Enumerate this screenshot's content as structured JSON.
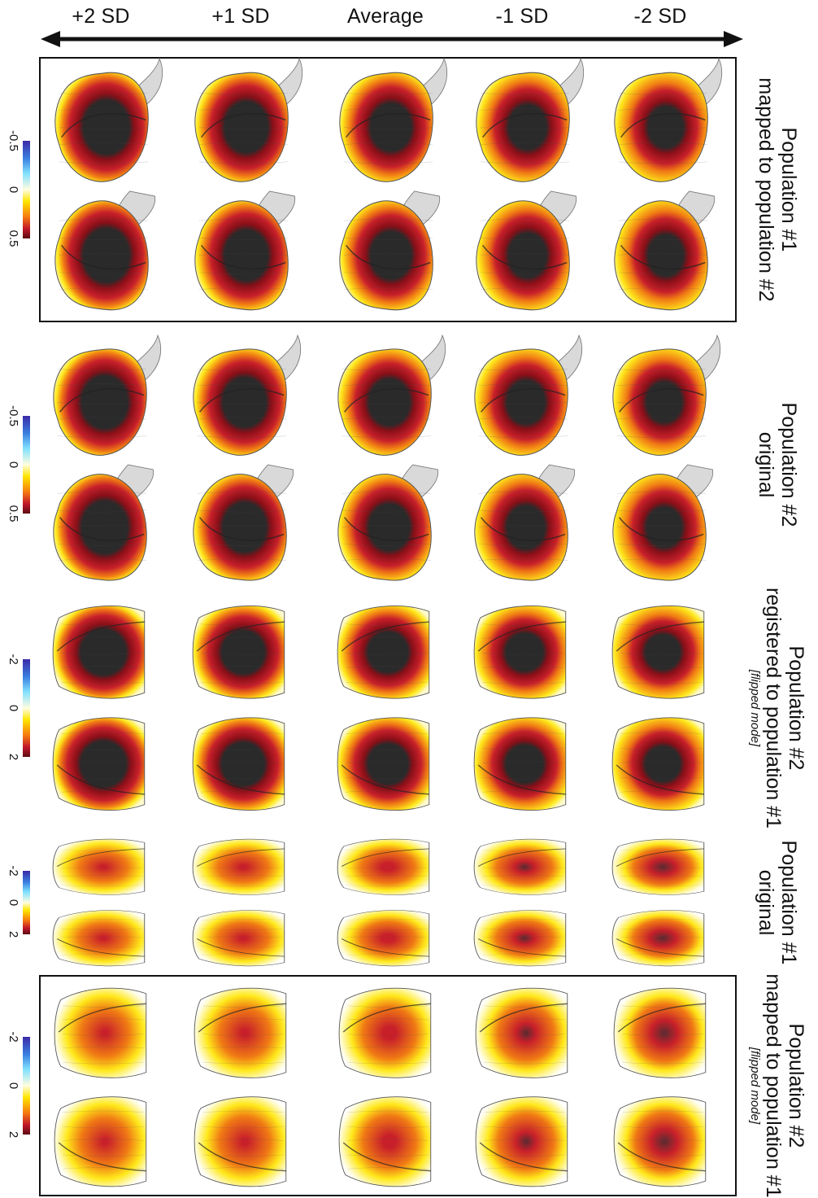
{
  "columns": [
    "+2 SD",
    "+1 SD",
    "Average",
    "-1 SD",
    "-2 SD"
  ],
  "rows": [
    {
      "id": "row1",
      "line1": "Population #1",
      "line2": "mapped to population #2",
      "line3": "",
      "boxed": true,
      "ticks": [
        "-0.5",
        "0",
        "0.5"
      ],
      "shape": "heart",
      "tone": "dark"
    },
    {
      "id": "row2",
      "line1": "Population #2",
      "line2": "original",
      "line3": "",
      "boxed": false,
      "ticks": [
        "-0.5",
        "0",
        "0.5"
      ],
      "shape": "heart",
      "tone": "dark"
    },
    {
      "id": "row3",
      "line1": "Population #2",
      "line2": "registered to population #1",
      "line3": "[flipped mode]",
      "boxed": false,
      "ticks": [
        "-2",
        "0",
        "2"
      ],
      "shape": "cup",
      "tone": "dark"
    },
    {
      "id": "row4",
      "line1": "Population #1",
      "line2": "original",
      "line3": "",
      "boxed": false,
      "ticks": [
        "-2",
        "0",
        "2"
      ],
      "shape": "cup",
      "tone": "light"
    },
    {
      "id": "row5",
      "line1": "Population #2",
      "line2": "mapped to population #1",
      "line3": "[flipped mode]",
      "boxed": true,
      "ticks": [
        "-2",
        "0",
        "2"
      ],
      "shape": "cup",
      "tone": "light"
    }
  ],
  "colors": {
    "dark_core": "#2a2a2a",
    "deep_red": "#8a0f18",
    "red": "#c8202a",
    "orange": "#f07a14",
    "yellow": "#ffe81a",
    "pale": "#fffbd0",
    "mesh_gray": "#bdbdbd"
  }
}
